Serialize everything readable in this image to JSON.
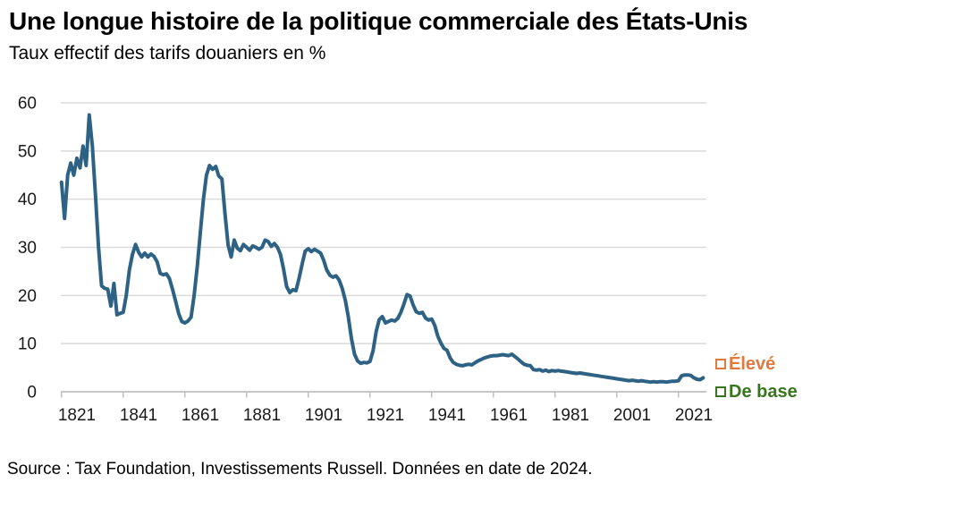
{
  "header": {
    "title": "Une longue histoire de la politique commerciale des États-Unis",
    "subtitle": "Taux effectif des tarifs douaniers en %"
  },
  "footer": {
    "source": "Source : Tax Foundation, Investissements Russell. Données en date de 2024."
  },
  "colors": {
    "line": "#2E6285",
    "grid": "#DADADA",
    "axis": "#BFBFBF",
    "text": "#1A1A1A",
    "legend_eleve": "#E1793C",
    "legend_de_base": "#38761D"
  },
  "chart_data": {
    "type": "line",
    "title": "Une longue histoire de la politique commerciale des États-Unis",
    "subtitle": "Taux effectif des tarifs douaniers en %",
    "xlabel": "",
    "ylabel": "Taux effectif des tarifs douaniers en %",
    "ylim": [
      0,
      60
    ],
    "yticks": [
      0,
      10,
      20,
      30,
      40,
      50,
      60
    ],
    "xtick_labels": [
      1821,
      1841,
      1861,
      1881,
      1901,
      1921,
      1941,
      1961,
      1981,
      2001,
      2021
    ],
    "grid": "horizontal-only",
    "legend_position": "right",
    "legend": [
      {
        "label": "Élevé",
        "color": "#E1793C"
      },
      {
        "label": "De base",
        "color": "#38761D"
      }
    ],
    "series": [
      {
        "name": "Taux effectif des tarifs douaniers en %",
        "color": "#2E6285",
        "x_start": 1816,
        "x_step": 1,
        "x_end": 2024,
        "values": [
          43.5,
          36.0,
          45.0,
          47.5,
          45.0,
          48.5,
          46.5,
          51.0,
          47.0,
          57.5,
          51.0,
          41.0,
          30.0,
          22.0,
          21.5,
          21.3,
          17.8,
          22.5,
          16.0,
          16.3,
          16.5,
          20.0,
          25.3,
          28.5,
          30.6,
          29.0,
          28.0,
          28.8,
          28.0,
          28.6,
          28.1,
          27.0,
          24.6,
          24.3,
          24.5,
          23.5,
          21.3,
          18.8,
          16.2,
          14.6,
          14.3,
          14.7,
          15.5,
          20.0,
          26.0,
          33.0,
          40.0,
          45.0,
          47.0,
          46.2,
          46.8,
          44.8,
          44.2,
          37.0,
          30.5,
          28.0,
          31.5,
          29.8,
          29.3,
          30.6,
          30.0,
          29.4,
          30.3,
          30.0,
          29.6,
          30.0,
          31.5,
          31.2,
          30.2,
          30.8,
          30.0,
          28.5,
          25.5,
          21.8,
          20.6,
          21.2,
          21.0,
          23.5,
          26.5,
          29.2,
          29.7,
          29.1,
          29.6,
          29.2,
          28.8,
          27.3,
          25.3,
          24.2,
          23.8,
          24.1,
          23.2,
          21.5,
          19.0,
          15.5,
          11.0,
          7.8,
          6.4,
          5.9,
          6.1,
          6.0,
          6.3,
          8.5,
          12.5,
          15.0,
          15.6,
          14.3,
          14.6,
          14.9,
          14.7,
          15.2,
          16.5,
          18.2,
          20.2,
          19.9,
          18.0,
          16.6,
          16.3,
          16.5,
          15.3,
          14.9,
          15.1,
          13.8,
          11.5,
          10.1,
          9.0,
          8.6,
          7.0,
          6.1,
          5.7,
          5.5,
          5.4,
          5.6,
          5.7,
          5.6,
          6.0,
          6.4,
          6.7,
          7.0,
          7.2,
          7.4,
          7.5,
          7.5,
          7.6,
          7.7,
          7.6,
          7.5,
          7.8,
          7.3,
          6.8,
          6.2,
          5.7,
          5.5,
          5.4,
          4.6,
          4.5,
          4.6,
          4.3,
          4.5,
          4.2,
          4.4,
          4.3,
          4.4,
          4.3,
          4.2,
          4.1,
          4.0,
          3.9,
          3.8,
          3.9,
          3.8,
          3.7,
          3.6,
          3.5,
          3.4,
          3.3,
          3.2,
          3.1,
          3.0,
          2.9,
          2.8,
          2.7,
          2.6,
          2.5,
          2.4,
          2.3,
          2.4,
          2.3,
          2.2,
          2.3,
          2.2,
          2.1,
          2.0,
          2.1,
          2.0,
          2.1,
          2.1,
          2.0,
          2.1,
          2.2,
          2.2,
          2.3,
          3.3,
          3.5,
          3.5,
          3.4,
          2.9,
          2.6,
          2.5,
          2.9
        ]
      }
    ]
  }
}
